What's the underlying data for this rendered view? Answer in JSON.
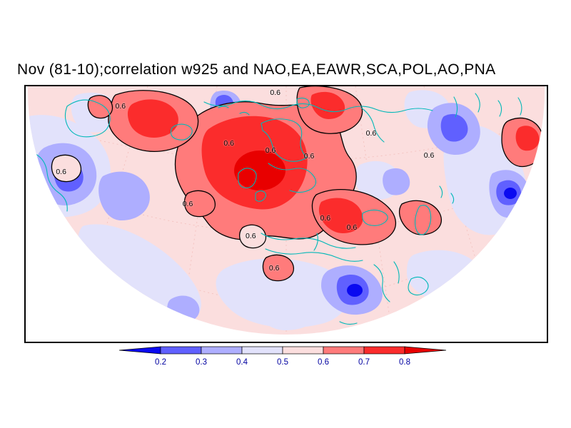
{
  "title": "Nov (81-10);correlation w925 and NAO,EA,EAWR,SCA,POL,AO,PNA",
  "chart_data": {
    "type": "heatmap",
    "subtype": "filled-contour correlation map on polar projection sector",
    "title": "Nov (81-10);correlation w925 and NAO,EA,EAWR,SCA,POL,AO,PNA",
    "period": "Nov (81-10)",
    "statistic": "correlation",
    "field": "w925",
    "indices": [
      "NAO",
      "EA",
      "EAWR",
      "SCA",
      "POL",
      "AO",
      "PNA"
    ],
    "levels": [
      0.2,
      0.3,
      0.4,
      0.5,
      0.6,
      0.7,
      0.8
    ],
    "labeled_contour": "0.6",
    "coastline_color": "#00b8b8",
    "contour_color": "#000000",
    "colorbar": {
      "tick_labels": [
        "0.2",
        "0.3",
        "0.4",
        "0.5",
        "0.6",
        "0.7",
        "0.8"
      ],
      "segment_colors": [
        "#6060ff",
        "#aeaeff",
        "#e2e2fb",
        "#fbdede",
        "#ff7b7b",
        "#fb2c2c"
      ],
      "left_arrow_color": "#0a0af0",
      "right_arrow_color": "#e80000",
      "label_color": "#0000a0"
    },
    "map_colors": {
      "below_0_2": "#0a0af0",
      "r0_2_0_3": "#6060ff",
      "r0_3_0_4": "#aeaeff",
      "r0_4_0_5": "#e2e2fb",
      "r0_5_0_6": "#fbdede",
      "r0_6_0_7": "#ff7b7b",
      "r0_7_0_8": "#fb2c2c",
      "above_0_8": "#e80000"
    },
    "contour_labels": [
      {
        "text": "0.6",
        "x": 18.2,
        "y": 7.8
      },
      {
        "text": "0.6",
        "x": 47.9,
        "y": 2.4
      },
      {
        "text": "0.6",
        "x": 39.0,
        "y": 22.3
      },
      {
        "text": "0.6",
        "x": 47.0,
        "y": 25.1
      },
      {
        "text": "0.6",
        "x": 54.4,
        "y": 27.4
      },
      {
        "text": "0.6",
        "x": 66.3,
        "y": 18.4
      },
      {
        "text": "0.6",
        "x": 77.4,
        "y": 27.1
      },
      {
        "text": "0.6",
        "x": 6.8,
        "y": 33.5
      },
      {
        "text": "0.6",
        "x": 31.1,
        "y": 46.1
      },
      {
        "text": "0.6",
        "x": 57.5,
        "y": 51.7
      },
      {
        "text": "0.6",
        "x": 62.6,
        "y": 55.3
      },
      {
        "text": "0.6",
        "x": 43.2,
        "y": 58.7
      },
      {
        "text": "0.6",
        "x": 47.7,
        "y": 71.2
      }
    ]
  }
}
